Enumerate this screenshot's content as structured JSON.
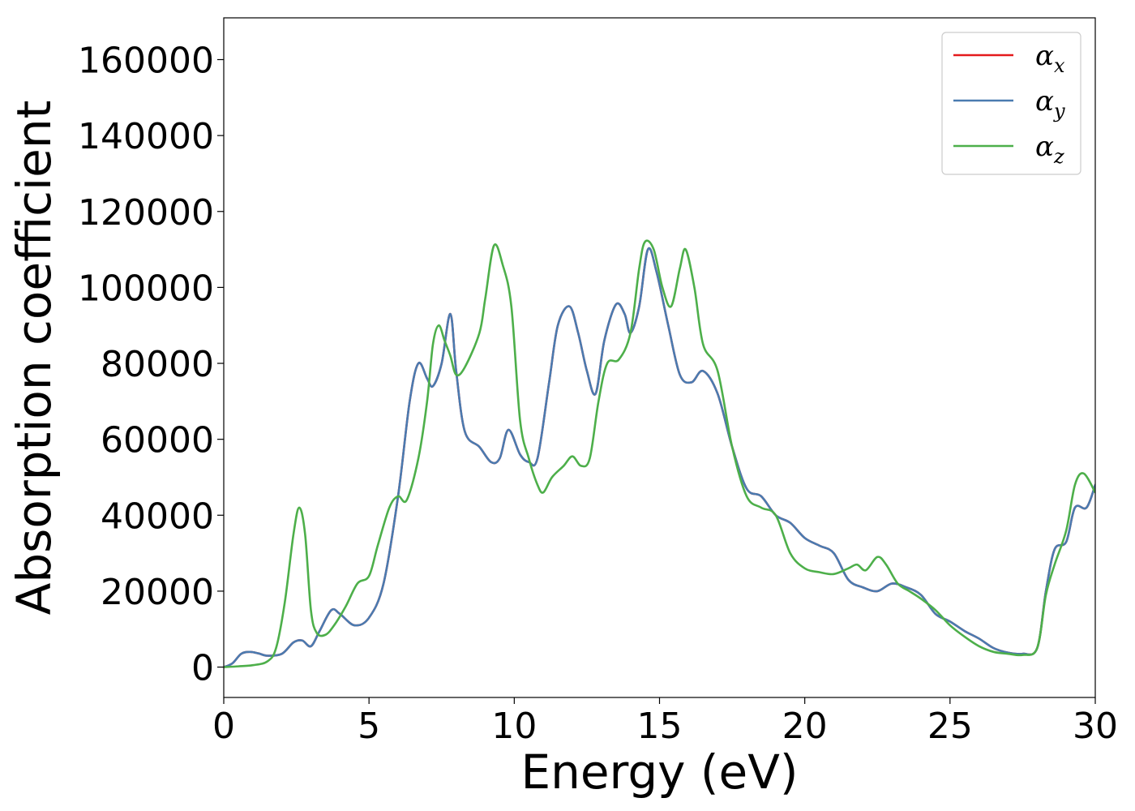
{
  "chart_data": {
    "type": "line",
    "xlabel": "Energy (eV)",
    "ylabel": "Absorption coefficient",
    "xlim": [
      0,
      30
    ],
    "ylim": [
      -8000,
      171000
    ],
    "xticks": [
      0,
      5,
      10,
      15,
      20,
      25,
      30
    ],
    "yticks": [
      0,
      20000,
      40000,
      60000,
      80000,
      100000,
      120000,
      140000,
      160000
    ],
    "grid": false,
    "legend_position": "top-right",
    "series": [
      {
        "name": "αx",
        "symbol": "α",
        "subscript": "x",
        "color": "#e41a1c",
        "x": [
          0,
          0.3,
          0.6,
          0.9,
          1.2,
          1.5,
          2.0,
          2.4,
          2.7,
          3.0,
          3.3,
          3.7,
          4.0,
          4.5,
          5.0,
          5.5,
          6.0,
          6.4,
          6.7,
          7.0,
          7.2,
          7.5,
          7.8,
          8.0,
          8.3,
          8.8,
          9.2,
          9.5,
          9.8,
          10.2,
          10.5,
          10.8,
          11.2,
          11.5,
          11.9,
          12.2,
          12.5,
          12.8,
          13.1,
          13.5,
          13.8,
          14.0,
          14.3,
          14.6,
          14.9,
          15.3,
          15.7,
          16.1,
          16.5,
          17.0,
          17.5,
          18.0,
          18.5,
          19.0,
          19.5,
          20.0,
          20.5,
          21.0,
          21.5,
          22.0,
          22.5,
          23.0,
          23.5,
          24.0,
          24.5,
          25.0,
          25.5,
          26.0,
          26.5,
          27.0,
          27.5,
          28.0,
          28.3,
          28.6,
          29.0,
          29.3,
          29.7,
          30.0
        ],
        "y": [
          0,
          1000,
          3500,
          4000,
          3600,
          3000,
          3500,
          6500,
          7000,
          5500,
          9500,
          15000,
          14000,
          11000,
          13000,
          22000,
          45000,
          70000,
          80000,
          76000,
          74000,
          80000,
          93000,
          78000,
          62000,
          58000,
          54000,
          55000,
          62500,
          56000,
          54000,
          55000,
          75000,
          90000,
          95000,
          88000,
          78000,
          72000,
          86000,
          95500,
          93000,
          88000,
          95000,
          110000,
          104000,
          90000,
          77000,
          75000,
          78000,
          72000,
          58000,
          47000,
          45000,
          40000,
          38000,
          34000,
          32000,
          30000,
          23000,
          21000,
          20000,
          22000,
          21000,
          19000,
          14000,
          12000,
          9500,
          7500,
          5000,
          3800,
          3500,
          5000,
          20000,
          31000,
          33000,
          42000,
          42000,
          48000
        ]
      },
      {
        "name": "αy",
        "symbol": "α",
        "subscript": "y",
        "color": "#4a7bb0",
        "x": [
          0,
          0.3,
          0.6,
          0.9,
          1.2,
          1.5,
          2.0,
          2.4,
          2.7,
          3.0,
          3.3,
          3.7,
          4.0,
          4.5,
          5.0,
          5.5,
          6.0,
          6.4,
          6.7,
          7.0,
          7.2,
          7.5,
          7.8,
          8.0,
          8.3,
          8.8,
          9.2,
          9.5,
          9.8,
          10.2,
          10.5,
          10.8,
          11.2,
          11.5,
          11.9,
          12.2,
          12.5,
          12.8,
          13.1,
          13.5,
          13.8,
          14.0,
          14.3,
          14.6,
          14.9,
          15.3,
          15.7,
          16.1,
          16.5,
          17.0,
          17.5,
          18.0,
          18.5,
          19.0,
          19.5,
          20.0,
          20.5,
          21.0,
          21.5,
          22.0,
          22.5,
          23.0,
          23.5,
          24.0,
          24.5,
          25.0,
          25.5,
          26.0,
          26.5,
          27.0,
          27.5,
          28.0,
          28.3,
          28.6,
          29.0,
          29.3,
          29.7,
          30.0
        ],
        "y": [
          0,
          1000,
          3500,
          4000,
          3600,
          3000,
          3500,
          6500,
          7000,
          5500,
          9500,
          15000,
          14000,
          11000,
          13000,
          22000,
          45000,
          70000,
          80000,
          76000,
          74000,
          80000,
          93000,
          78000,
          62000,
          58000,
          54000,
          55000,
          62500,
          56000,
          54000,
          55000,
          75000,
          90000,
          95000,
          88000,
          78000,
          72000,
          86000,
          95500,
          93000,
          88000,
          95000,
          110000,
          104000,
          90000,
          77000,
          75000,
          78000,
          72000,
          58000,
          47000,
          45000,
          40000,
          38000,
          34000,
          32000,
          30000,
          23000,
          21000,
          20000,
          22000,
          21000,
          19000,
          14000,
          12000,
          9500,
          7500,
          5000,
          3800,
          3500,
          5000,
          20000,
          31000,
          33000,
          42000,
          42000,
          48000
        ]
      },
      {
        "name": "αz",
        "symbol": "α",
        "subscript": "z",
        "color": "#4daf4a",
        "x": [
          0,
          0.5,
          1.0,
          1.5,
          1.8,
          2.1,
          2.4,
          2.6,
          2.8,
          3.0,
          3.2,
          3.5,
          3.8,
          4.2,
          4.6,
          5.0,
          5.3,
          5.7,
          6.0,
          6.3,
          6.7,
          7.0,
          7.2,
          7.4,
          7.6,
          7.8,
          8.0,
          8.3,
          8.8,
          9.0,
          9.3,
          9.6,
          9.9,
          10.2,
          10.5,
          10.8,
          11.0,
          11.3,
          11.7,
          12.0,
          12.3,
          12.6,
          12.9,
          13.2,
          13.6,
          14.0,
          14.3,
          14.5,
          14.8,
          15.1,
          15.4,
          15.7,
          15.9,
          16.2,
          16.5,
          17.0,
          17.5,
          18.0,
          18.5,
          19.0,
          19.5,
          20.0,
          20.5,
          21.0,
          21.5,
          21.8,
          22.1,
          22.5,
          22.8,
          23.2,
          23.6,
          24.0,
          24.5,
          25.0,
          25.5,
          26.0,
          26.5,
          27.0,
          27.5,
          28.0,
          28.3,
          28.6,
          29.0,
          29.3,
          29.6,
          30.0
        ],
        "y": [
          0,
          200,
          500,
          1500,
          5000,
          17000,
          35000,
          42000,
          35000,
          15000,
          9000,
          8500,
          11000,
          16000,
          22000,
          24000,
          32000,
          42000,
          45000,
          44000,
          55000,
          70000,
          85000,
          90000,
          86000,
          82000,
          77000,
          79000,
          88000,
          97000,
          111000,
          106000,
          95000,
          65000,
          55000,
          48000,
          46000,
          50000,
          53000,
          55500,
          53000,
          55000,
          70000,
          80000,
          81000,
          88000,
          105000,
          112000,
          110000,
          100000,
          95000,
          105000,
          110000,
          100000,
          85000,
          78000,
          58000,
          45000,
          42000,
          40000,
          30000,
          26000,
          25000,
          24500,
          26000,
          27000,
          25500,
          29000,
          27000,
          22000,
          20000,
          18000,
          15000,
          11000,
          8000,
          5500,
          4000,
          3500,
          3200,
          5000,
          19000,
          27000,
          36000,
          48000,
          51000,
          46000
        ]
      }
    ]
  }
}
